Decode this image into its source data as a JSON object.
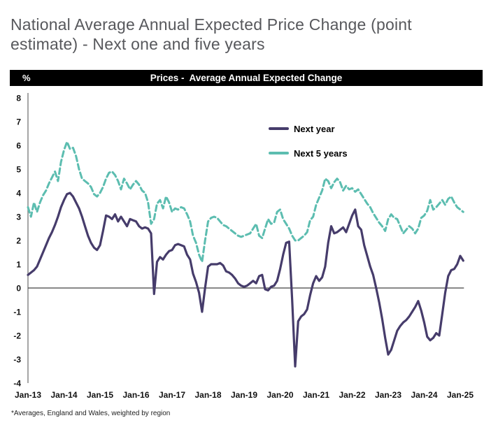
{
  "page": {
    "title_line1": "National Average Annual Expected Price Change (point",
    "title_line2": "estimate) - Next one and five years"
  },
  "header_bar": {
    "unit_label": "%",
    "title": "Prices -  Average Annual Expected Change",
    "background_color": "#000000",
    "text_color": "#ffffff"
  },
  "legend": {
    "items": [
      {
        "label": "Next year",
        "color": "#463c6b",
        "style": "solid"
      },
      {
        "label": "Next 5 years",
        "color": "#5cbdb0",
        "style": "dashed"
      }
    ]
  },
  "footnote": "*Averages, England and Wales, weighted by region",
  "chart_data": {
    "type": "line",
    "title": "Prices -  Average Annual Expected Change",
    "ylabel": "%",
    "ylim": [
      -4,
      8
    ],
    "y_ticks": [
      8,
      7,
      6,
      5,
      4,
      3,
      2,
      1,
      0,
      -1,
      -2,
      -3,
      -4
    ],
    "x_tick_labels": [
      "Jan-13",
      "Jan-14",
      "Jan-15",
      "Jan-16",
      "Jan-17",
      "Jan-18",
      "Jan-19",
      "Jan-20",
      "Jan-21",
      "Jan-22",
      "Jan-23",
      "Jan-24",
      "Jan-25"
    ],
    "x_start_month": "2013-01",
    "x_end_month": "2025-02",
    "x_frequency": "monthly",
    "grid": false,
    "legend_position": "upper-center",
    "zero_line": true,
    "series": [
      {
        "name": "Next year",
        "color": "#463c6b",
        "line_style": "solid",
        "values": [
          0.55,
          0.65,
          0.75,
          0.9,
          1.2,
          1.5,
          1.8,
          2.1,
          2.35,
          2.65,
          3.0,
          3.4,
          3.7,
          3.95,
          4.0,
          3.85,
          3.6,
          3.35,
          3.0,
          2.6,
          2.2,
          1.9,
          1.7,
          1.6,
          1.8,
          2.4,
          3.05,
          3.0,
          2.9,
          3.1,
          2.8,
          3.0,
          2.8,
          2.6,
          2.9,
          2.85,
          2.8,
          2.6,
          2.5,
          2.55,
          2.5,
          2.3,
          -0.25,
          1.1,
          1.3,
          1.2,
          1.4,
          1.55,
          1.6,
          1.8,
          1.85,
          1.8,
          1.75,
          1.4,
          1.2,
          0.6,
          0.25,
          -0.2,
          -1.0,
          0.0,
          0.9,
          1.0,
          1.0,
          1.0,
          1.05,
          0.95,
          0.7,
          0.65,
          0.55,
          0.4,
          0.2,
          0.1,
          0.05,
          0.1,
          0.2,
          0.3,
          0.2,
          0.5,
          0.55,
          -0.05,
          -0.1,
          0.05,
          0.1,
          0.3,
          0.8,
          1.4,
          1.9,
          1.95,
          -0.5,
          -3.3,
          -1.4,
          -1.2,
          -1.1,
          -0.9,
          -0.3,
          0.2,
          0.5,
          0.3,
          0.45,
          0.9,
          1.9,
          2.6,
          2.3,
          2.35,
          2.45,
          2.55,
          2.35,
          2.7,
          3.05,
          3.3,
          2.6,
          2.45,
          1.8,
          1.35,
          0.9,
          0.55,
          0.0,
          -0.6,
          -1.3,
          -2.1,
          -2.8,
          -2.6,
          -2.2,
          -1.8,
          -1.6,
          -1.45,
          -1.35,
          -1.2,
          -1.0,
          -0.8,
          -0.55,
          -0.95,
          -1.45,
          -2.05,
          -2.2,
          -2.1,
          -1.9,
          -2.0,
          -1.1,
          -0.2,
          0.5,
          0.75,
          0.8,
          1.0,
          1.35,
          1.15
        ]
      },
      {
        "name": "Next 5 years",
        "color": "#5cbdb0",
        "line_style": "dashed",
        "values": [
          3.4,
          3.0,
          3.6,
          3.2,
          3.6,
          3.9,
          4.1,
          4.4,
          4.65,
          4.9,
          4.5,
          5.3,
          5.8,
          6.15,
          5.85,
          5.9,
          5.55,
          5.0,
          4.6,
          4.5,
          4.4,
          4.25,
          3.95,
          3.85,
          4.0,
          4.25,
          4.6,
          4.85,
          4.9,
          4.75,
          4.5,
          4.15,
          4.6,
          4.4,
          4.15,
          4.35,
          4.5,
          4.35,
          4.1,
          4.0,
          3.6,
          2.7,
          2.9,
          3.55,
          3.7,
          3.35,
          3.85,
          3.6,
          3.2,
          3.35,
          3.3,
          3.4,
          3.35,
          3.1,
          2.8,
          2.2,
          1.9,
          1.4,
          1.1,
          2.0,
          2.8,
          2.95,
          3.0,
          2.95,
          2.8,
          2.65,
          2.6,
          2.5,
          2.4,
          2.3,
          2.2,
          2.15,
          2.2,
          2.25,
          2.3,
          2.5,
          2.7,
          2.2,
          2.1,
          2.5,
          2.9,
          2.7,
          2.75,
          3.2,
          3.3,
          2.9,
          2.7,
          2.5,
          2.2,
          2.0,
          2.0,
          2.1,
          2.2,
          2.35,
          2.85,
          3.0,
          3.5,
          3.8,
          4.1,
          4.6,
          4.5,
          4.2,
          4.45,
          4.6,
          4.45,
          4.1,
          4.3,
          4.15,
          4.2,
          4.05,
          4.15,
          3.95,
          3.75,
          3.55,
          3.4,
          3.15,
          2.95,
          2.75,
          2.6,
          2.4,
          2.9,
          3.1,
          2.95,
          2.9,
          2.6,
          2.3,
          2.45,
          2.6,
          2.5,
          2.3,
          2.5,
          2.95,
          3.05,
          3.25,
          3.7,
          3.3,
          3.4,
          3.55,
          3.7,
          3.5,
          3.75,
          3.85,
          3.6,
          3.4,
          3.3,
          3.2
        ]
      }
    ]
  }
}
